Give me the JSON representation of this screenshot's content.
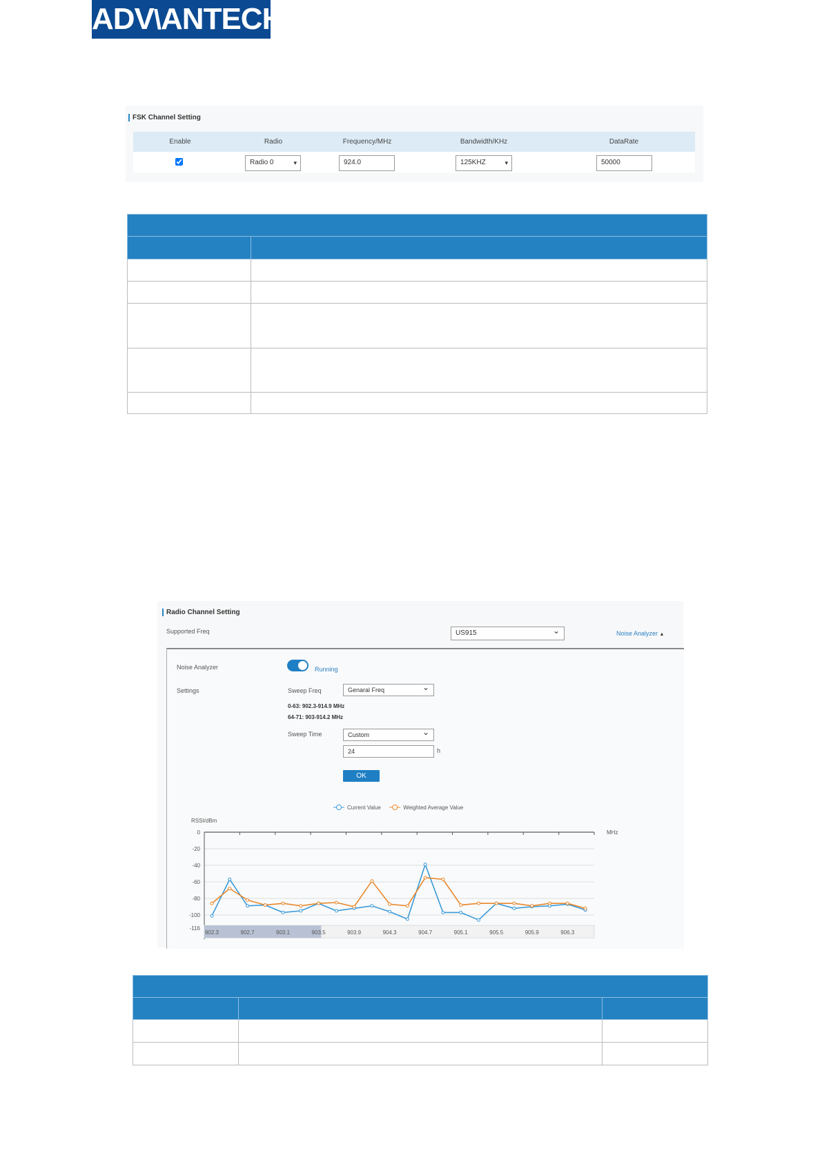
{
  "logo": {
    "text": "ADVANTECH",
    "color": "#0b4a92"
  },
  "fsk": {
    "title": "FSK Channel Setting",
    "columns": [
      "Enable",
      "Radio",
      "Frequency/MHz",
      "Bandwidth/KHz",
      "DataRate"
    ],
    "row": {
      "enable": true,
      "radio": "Radio 0",
      "frequency": "924.0",
      "bandwidth": "125KHZ",
      "datarate": "50000"
    }
  },
  "radio": {
    "title": "Radio Channel Setting",
    "supported_freq_label": "Supported Freq",
    "supported_freq": "US915",
    "noise_link": "Noise Analyzer",
    "noise_label": "Noise Analyzer",
    "noise_enabled": true,
    "noise_status": "Running",
    "settings_label": "Settings",
    "sweep_freq_label": "Sweep Freq",
    "sweep_freq": "Genaral Freq",
    "range1": "0-63:  902.3-914.9 MHz",
    "range2": "64-71:  903-914.2 MHz",
    "sweep_time_label": "Sweep Time",
    "sweep_time": "Custom",
    "sweep_hours": "24",
    "hours_unit": "h",
    "ok": "OK"
  },
  "chart_data": {
    "type": "line",
    "ylabel": "RSSI/dBm",
    "xlabel": "MHz",
    "ylim": [
      -116,
      0
    ],
    "yticks": [
      "0",
      "-20",
      "-40",
      "-60",
      "-80",
      "-100",
      "-116"
    ],
    "xticks": [
      "902.3",
      "902.7",
      "903.1",
      "903.5",
      "903.9",
      "904.3",
      "904.7",
      "905.1",
      "905.5",
      "905.9",
      "906.3"
    ],
    "x": [
      902.3,
      902.5,
      902.7,
      902.9,
      903.1,
      903.3,
      903.5,
      903.7,
      903.9,
      904.1,
      904.3,
      904.5,
      904.7,
      904.9,
      905.1,
      905.3,
      905.5,
      905.7,
      905.9,
      906.1,
      906.3,
      906.5
    ],
    "grid": true,
    "legend": "top",
    "series": [
      {
        "name": "Current Value",
        "color": "#3a9ad9",
        "values": [
          -101,
          -57,
          -89,
          -88,
          -97,
          -95,
          -86,
          -95,
          -92,
          -89,
          -96,
          -105,
          -39,
          -97,
          -97,
          -106,
          -86,
          -92,
          -90,
          -89,
          -87,
          -94
        ]
      },
      {
        "name": "Weighted Average Value",
        "color": "#e8872b",
        "values": [
          -86,
          -68,
          -82,
          -88,
          -86,
          -89,
          -86,
          -85,
          -90,
          -59,
          -87,
          -89,
          -55,
          -57,
          -88,
          -86,
          -86,
          -86,
          -89,
          -86,
          -86,
          -92
        ]
      }
    ]
  },
  "colors": {
    "table_header": "#2582c2",
    "accent": "#1f7fc4"
  }
}
